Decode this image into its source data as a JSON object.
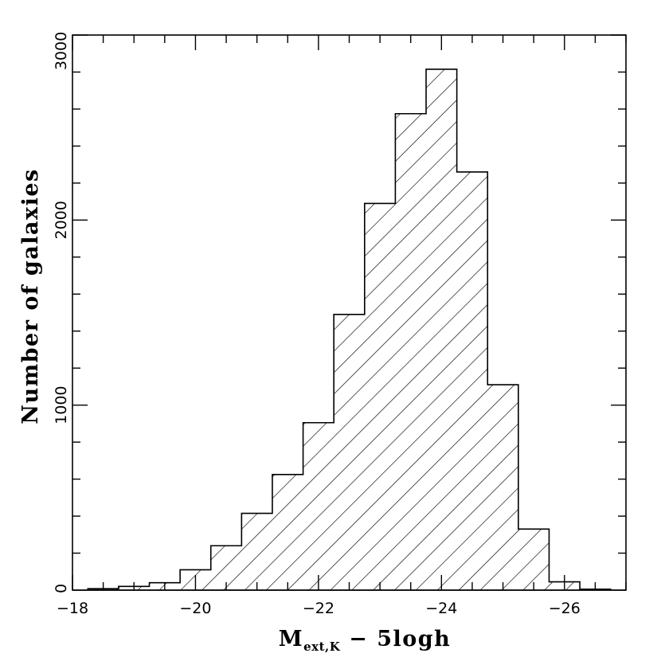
{
  "chart_data": {
    "type": "bar",
    "subtype": "histogram",
    "title": "",
    "xlabel_main": "M",
    "xlabel_sub": "ext,K",
    "xlabel_rest": " − 5logh",
    "ylabel": "Number of galaxies",
    "xlim": [
      -18,
      -27
    ],
    "ylim": [
      0,
      3000
    ],
    "x_reversed": true,
    "x_ticks": [
      -18,
      -20,
      -22,
      -24,
      -26
    ],
    "x_tick_labels": [
      "−18",
      "−20",
      "−22",
      "−24",
      "−26"
    ],
    "y_ticks": [
      0,
      1000,
      2000,
      3000
    ],
    "y_tick_labels": [
      "0",
      "1000",
      "2000",
      "3000"
    ],
    "fill": "diagonal-hatch",
    "grid": false,
    "bin_edges": [
      -18.25,
      -18.75,
      -19.25,
      -19.75,
      -20.25,
      -20.75,
      -21.25,
      -21.75,
      -22.25,
      -22.75,
      -23.25,
      -23.75,
      -24.25,
      -24.75,
      -25.25,
      -25.75,
      -26.25,
      -26.75
    ],
    "values": [
      8,
      20,
      40,
      110,
      240,
      415,
      625,
      905,
      1490,
      2090,
      2575,
      2815,
      2260,
      1110,
      330,
      45,
      5
    ],
    "colors": {
      "line": "#000000",
      "background": "#ffffff"
    }
  }
}
